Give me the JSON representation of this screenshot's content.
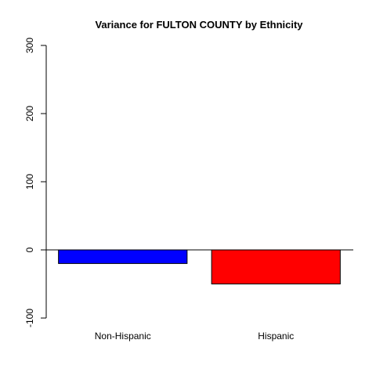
{
  "chart_data": {
    "type": "bar",
    "title": "Variance for FULTON COUNTY by Ethnicity",
    "xlabel": "",
    "ylabel": "",
    "categories": [
      "Non-Hispanic",
      "Hispanic"
    ],
    "values": [
      -20,
      -50
    ],
    "colors": [
      "#0000ff",
      "#ff0000"
    ],
    "ylim": [
      -100,
      300
    ],
    "yticks": [
      -100,
      0,
      100,
      200,
      300
    ],
    "baseline": 0,
    "grid": false,
    "legend": "none"
  }
}
